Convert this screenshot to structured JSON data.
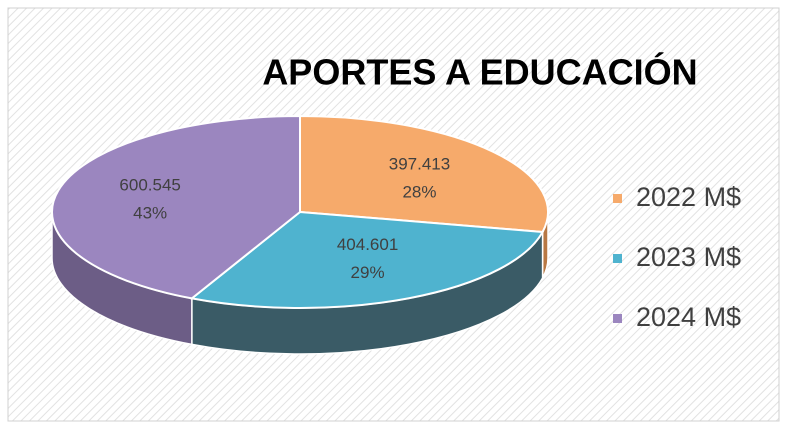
{
  "chart_data": {
    "type": "pie3d",
    "title": "APORTES A EDUCACIÓN",
    "categories": [
      "2022 M$",
      "2023 M$",
      "2024 M$"
    ],
    "values": [
      397413,
      404601,
      600545
    ],
    "value_labels": [
      "397.413",
      "404.601",
      "600.545"
    ],
    "percent_labels": [
      "28%",
      "29%",
      "43%"
    ],
    "colors": [
      "#f6aa6b",
      "#4fb3cf",
      "#9b86bf"
    ],
    "side_colors": [
      "#b87844",
      "#3a5b66",
      "#6c5d86"
    ],
    "legend": "right"
  }
}
